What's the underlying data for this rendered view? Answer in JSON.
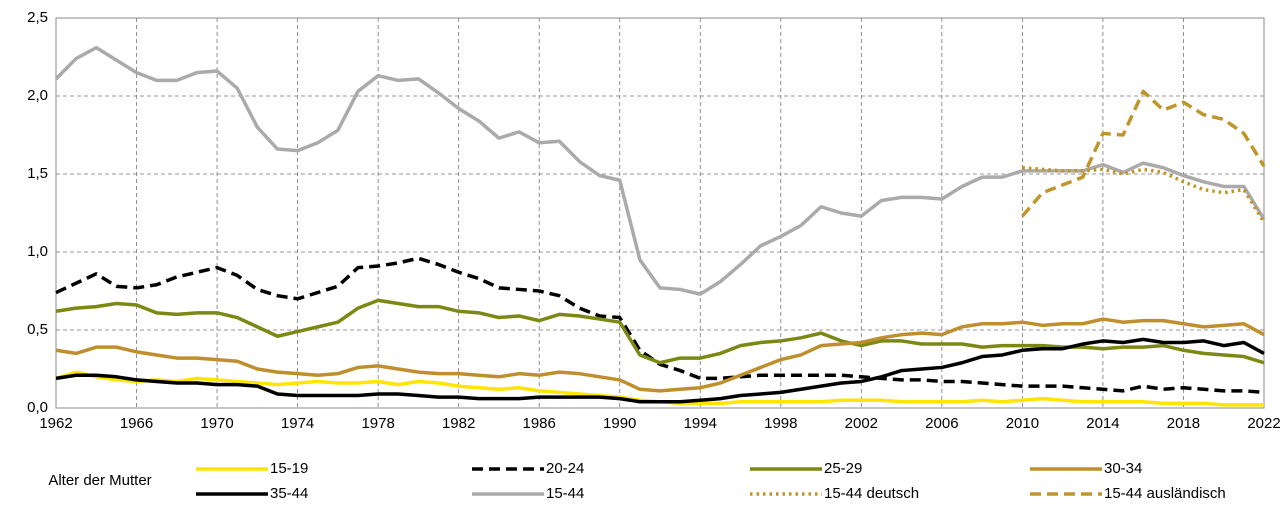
{
  "chart_data": {
    "type": "line",
    "x": [
      1962,
      1963,
      1964,
      1965,
      1966,
      1967,
      1968,
      1969,
      1970,
      1971,
      1972,
      1973,
      1974,
      1975,
      1976,
      1977,
      1978,
      1979,
      1980,
      1981,
      1982,
      1983,
      1984,
      1985,
      1986,
      1987,
      1988,
      1989,
      1990,
      1991,
      1992,
      1993,
      1994,
      1995,
      1996,
      1997,
      1998,
      1999,
      2000,
      2001,
      2002,
      2003,
      2004,
      2005,
      2006,
      2007,
      2008,
      2009,
      2010,
      2011,
      2012,
      2013,
      2014,
      2015,
      2016,
      2017,
      2018,
      2019,
      2020,
      2021,
      2022
    ],
    "xlim": [
      1962,
      2022
    ],
    "xticks": [
      1962,
      1966,
      1970,
      1974,
      1978,
      1982,
      1986,
      1990,
      1994,
      1998,
      2002,
      2006,
      2010,
      2014,
      2018,
      2022
    ],
    "ylim": [
      0,
      2.5
    ],
    "yticks": [
      {
        "value": 0,
        "label": "0,0"
      },
      {
        "value": 0.5,
        "label": "0,5"
      },
      {
        "value": 1,
        "label": "1,0"
      },
      {
        "value": 1.5,
        "label": "1,5"
      },
      {
        "value": 2,
        "label": "2,0"
      },
      {
        "value": 2.5,
        "label": "2,5"
      }
    ],
    "grid": true,
    "legend_title": "Alter der Mutter",
    "legend_position": "bottom",
    "series": [
      {
        "name": "15-19",
        "color": "#ffe500",
        "dash": "solid",
        "values": [
          0.19,
          0.23,
          0.2,
          0.18,
          0.17,
          0.18,
          0.17,
          0.19,
          0.18,
          0.17,
          0.16,
          0.15,
          0.16,
          0.17,
          0.16,
          0.16,
          0.17,
          0.15,
          0.17,
          0.16,
          0.14,
          0.13,
          0.12,
          0.13,
          0.11,
          0.1,
          0.09,
          0.08,
          0.07,
          0.05,
          0.04,
          0.03,
          0.03,
          0.03,
          0.04,
          0.04,
          0.04,
          0.04,
          0.04,
          0.05,
          0.05,
          0.05,
          0.04,
          0.04,
          0.04,
          0.04,
          0.05,
          0.04,
          0.05,
          0.06,
          0.05,
          0.04,
          0.04,
          0.04,
          0.04,
          0.03,
          0.03,
          0.03,
          0.02,
          0.02,
          0.02
        ]
      },
      {
        "name": "20-24",
        "color": "#000000",
        "dash": "dashed",
        "values": [
          0.74,
          0.8,
          0.86,
          0.78,
          0.77,
          0.79,
          0.84,
          0.87,
          0.9,
          0.85,
          0.76,
          0.72,
          0.7,
          0.74,
          0.78,
          0.9,
          0.91,
          0.93,
          0.96,
          0.92,
          0.87,
          0.83,
          0.77,
          0.76,
          0.75,
          0.72,
          0.64,
          0.59,
          0.58,
          0.37,
          0.28,
          0.24,
          0.19,
          0.19,
          0.2,
          0.21,
          0.21,
          0.21,
          0.21,
          0.21,
          0.2,
          0.19,
          0.18,
          0.18,
          0.17,
          0.17,
          0.16,
          0.15,
          0.14,
          0.14,
          0.14,
          0.13,
          0.12,
          0.11,
          0.14,
          0.12,
          0.13,
          0.12,
          0.11,
          0.11,
          0.1
        ]
      },
      {
        "name": "25-29",
        "color": "#7b8914",
        "dash": "solid",
        "values": [
          0.62,
          0.64,
          0.65,
          0.67,
          0.66,
          0.61,
          0.6,
          0.61,
          0.61,
          0.58,
          0.52,
          0.46,
          0.49,
          0.52,
          0.55,
          0.64,
          0.69,
          0.67,
          0.65,
          0.65,
          0.62,
          0.61,
          0.58,
          0.59,
          0.56,
          0.6,
          0.59,
          0.57,
          0.55,
          0.34,
          0.29,
          0.32,
          0.32,
          0.35,
          0.4,
          0.42,
          0.43,
          0.45,
          0.48,
          0.43,
          0.4,
          0.43,
          0.43,
          0.41,
          0.41,
          0.41,
          0.39,
          0.4,
          0.4,
          0.4,
          0.39,
          0.39,
          0.38,
          0.39,
          0.39,
          0.4,
          0.37,
          0.35,
          0.34,
          0.33,
          0.29
        ]
      },
      {
        "name": "30-34",
        "color": "#bf8f2e",
        "dash": "solid",
        "values": [
          0.37,
          0.35,
          0.39,
          0.39,
          0.36,
          0.34,
          0.32,
          0.32,
          0.31,
          0.3,
          0.25,
          0.23,
          0.22,
          0.21,
          0.22,
          0.26,
          0.27,
          0.25,
          0.23,
          0.22,
          0.22,
          0.21,
          0.2,
          0.22,
          0.21,
          0.23,
          0.22,
          0.2,
          0.18,
          0.12,
          0.11,
          0.12,
          0.13,
          0.16,
          0.21,
          0.26,
          0.31,
          0.34,
          0.4,
          0.41,
          0.42,
          0.45,
          0.47,
          0.48,
          0.47,
          0.52,
          0.54,
          0.54,
          0.55,
          0.53,
          0.54,
          0.54,
          0.57,
          0.55,
          0.56,
          0.56,
          0.54,
          0.52,
          0.53,
          0.54,
          0.47
        ]
      },
      {
        "name": "35-44",
        "color": "#000000",
        "dash": "solid",
        "values": [
          0.19,
          0.21,
          0.21,
          0.2,
          0.18,
          0.17,
          0.16,
          0.16,
          0.15,
          0.15,
          0.14,
          0.09,
          0.08,
          0.08,
          0.08,
          0.08,
          0.09,
          0.09,
          0.08,
          0.07,
          0.07,
          0.06,
          0.06,
          0.06,
          0.07,
          0.07,
          0.07,
          0.07,
          0.06,
          0.04,
          0.04,
          0.04,
          0.05,
          0.06,
          0.08,
          0.09,
          0.1,
          0.12,
          0.14,
          0.16,
          0.17,
          0.2,
          0.24,
          0.25,
          0.26,
          0.29,
          0.33,
          0.34,
          0.37,
          0.38,
          0.38,
          0.41,
          0.43,
          0.42,
          0.44,
          0.42,
          0.42,
          0.43,
          0.4,
          0.42,
          0.35
        ]
      },
      {
        "name": "15-44",
        "color": "#aaaaaa",
        "dash": "solid",
        "values": [
          2.11,
          2.24,
          2.31,
          2.23,
          2.15,
          2.1,
          2.1,
          2.15,
          2.16,
          2.05,
          1.8,
          1.66,
          1.65,
          1.7,
          1.78,
          2.03,
          2.13,
          2.1,
          2.11,
          2.02,
          1.92,
          1.84,
          1.73,
          1.77,
          1.7,
          1.71,
          1.58,
          1.49,
          1.46,
          0.95,
          0.77,
          0.76,
          0.73,
          0.81,
          0.92,
          1.04,
          1.1,
          1.17,
          1.29,
          1.25,
          1.23,
          1.33,
          1.35,
          1.35,
          1.34,
          1.42,
          1.48,
          1.48,
          1.52,
          1.52,
          1.52,
          1.52,
          1.56,
          1.51,
          1.57,
          1.54,
          1.49,
          1.45,
          1.42,
          1.42,
          1.21
        ]
      },
      {
        "name": "15-44 deutsch",
        "color": "#c29421",
        "dash": "dotted",
        "values": [
          null,
          null,
          null,
          null,
          null,
          null,
          null,
          null,
          null,
          null,
          null,
          null,
          null,
          null,
          null,
          null,
          null,
          null,
          null,
          null,
          null,
          null,
          null,
          null,
          null,
          null,
          null,
          null,
          null,
          null,
          null,
          null,
          null,
          null,
          null,
          null,
          null,
          null,
          null,
          null,
          null,
          null,
          null,
          null,
          null,
          null,
          null,
          null,
          1.54,
          1.53,
          1.52,
          1.52,
          1.53,
          1.5,
          1.53,
          1.51,
          1.45,
          1.4,
          1.38,
          1.4,
          1.19
        ]
      },
      {
        "name": "15-44 ausländisch",
        "color": "#c0952c",
        "dash": "dashed",
        "values": [
          null,
          null,
          null,
          null,
          null,
          null,
          null,
          null,
          null,
          null,
          null,
          null,
          null,
          null,
          null,
          null,
          null,
          null,
          null,
          null,
          null,
          null,
          null,
          null,
          null,
          null,
          null,
          null,
          null,
          null,
          null,
          null,
          null,
          null,
          null,
          null,
          null,
          null,
          null,
          null,
          null,
          null,
          null,
          null,
          null,
          null,
          null,
          null,
          1.23,
          1.38,
          1.43,
          1.48,
          1.76,
          1.75,
          2.03,
          1.91,
          1.96,
          1.88,
          1.85,
          1.76,
          1.55
        ]
      }
    ]
  }
}
